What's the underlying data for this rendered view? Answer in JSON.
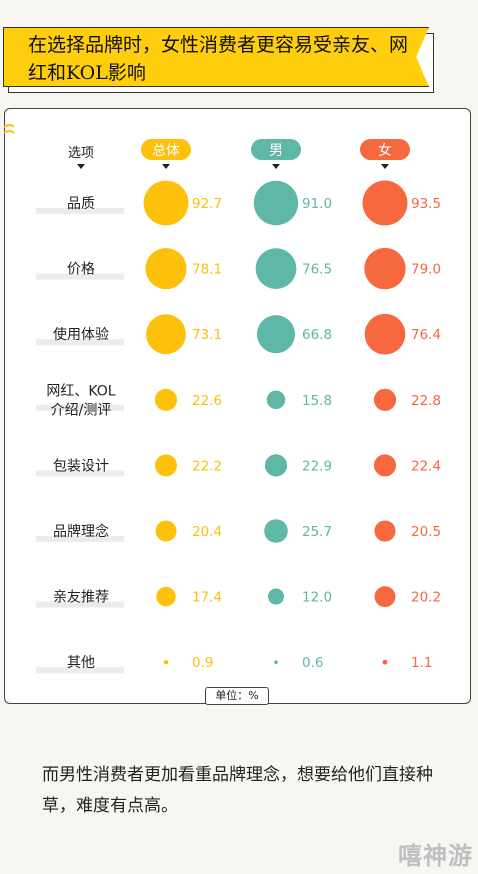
{
  "banner": {
    "title": "在选择品牌时，女性消费者更容易受亲友、网红和KOL影响"
  },
  "chart_data": {
    "type": "bubble-table",
    "row_header": "选项",
    "unit": "单位：%",
    "columns": [
      {
        "name": "总体",
        "color": "#fdc10b"
      },
      {
        "name": "男",
        "color": "#5fb7a7"
      },
      {
        "name": "女",
        "color": "#f7683e"
      }
    ],
    "rows": [
      {
        "label": [
          "品质"
        ],
        "values": [
          92.7,
          91.0,
          93.5
        ]
      },
      {
        "label": [
          "价格"
        ],
        "values": [
          78.1,
          76.5,
          79.0
        ]
      },
      {
        "label": [
          "使用体验"
        ],
        "values": [
          73.1,
          66.8,
          76.4
        ]
      },
      {
        "label": [
          "网红、KOL",
          "介绍/测评"
        ],
        "values": [
          22.6,
          15.8,
          22.8
        ]
      },
      {
        "label": [
          "包装设计"
        ],
        "values": [
          22.2,
          22.9,
          22.4
        ]
      },
      {
        "label": [
          "品牌理念"
        ],
        "values": [
          20.4,
          25.7,
          20.5
        ]
      },
      {
        "label": [
          "亲友推荐"
        ],
        "values": [
          17.4,
          12.0,
          20.2
        ]
      },
      {
        "label": [
          "其他"
        ],
        "values": [
          0.9,
          0.6,
          1.1
        ]
      }
    ]
  },
  "caption": {
    "text": "而男性消费者更加看重品牌理念，想要给他们直接种草，难度有点高。"
  },
  "watermark": {
    "text": "嘻神游"
  }
}
